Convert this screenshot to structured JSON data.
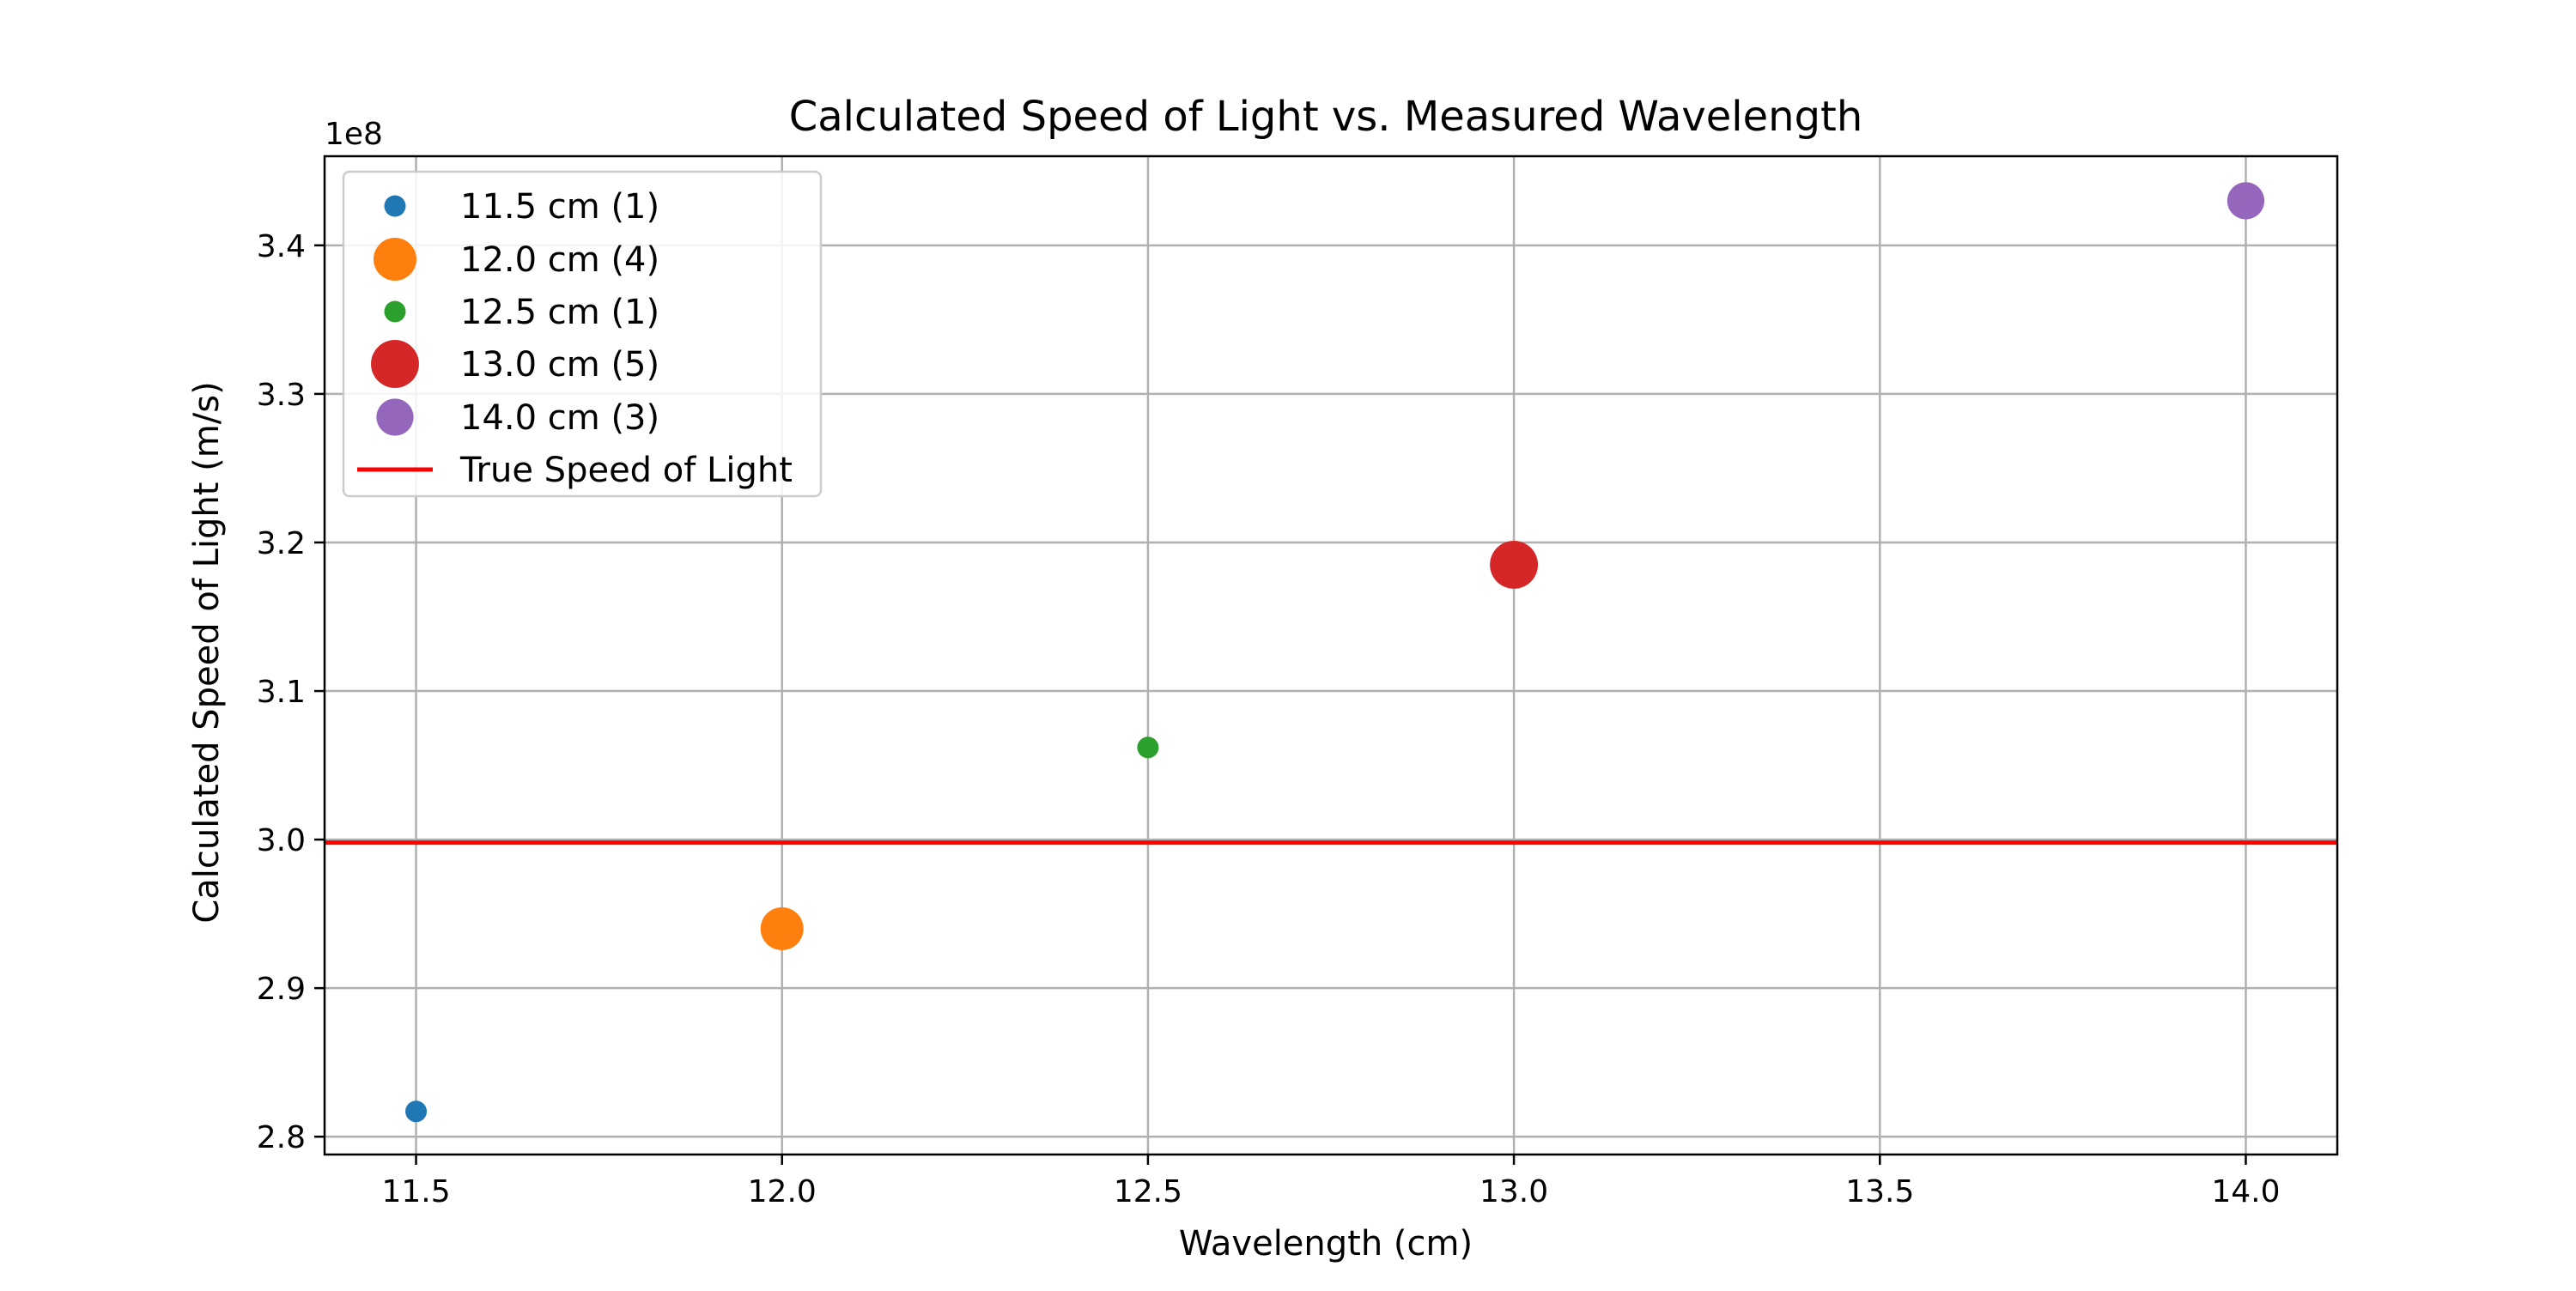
{
  "chart_data": {
    "type": "scatter",
    "title": "Calculated Speed of Light vs. Measured Wavelength",
    "xlabel": "Wavelength (cm)",
    "ylabel": "Calculated Speed of Light (m/s)",
    "y_offset_label": "1e8",
    "xlim": [
      11.375,
      14.125
    ],
    "ylim": [
      2.788,
      3.46
    ],
    "x_ticks": [
      11.5,
      12.0,
      12.5,
      13.0,
      13.5,
      14.0
    ],
    "x_tick_labels": [
      "11.5",
      "12.0",
      "12.5",
      "13.0",
      "13.5",
      "14.0"
    ],
    "y_ticks": [
      2.8,
      2.9,
      3.0,
      3.1,
      3.2,
      3.3,
      3.4
    ],
    "y_tick_labels": [
      "2.8",
      "2.9",
      "3.0",
      "3.1",
      "3.2",
      "3.3",
      "3.4"
    ],
    "grid": true,
    "legend_placement": "upper-left",
    "series": [
      {
        "name": "11.5 cm (1)",
        "x": 11.5,
        "y": 2.817,
        "count": 1,
        "color": "#1f77b4"
      },
      {
        "name": "12.0 cm (4)",
        "x": 12.0,
        "y": 2.94,
        "count": 4,
        "color": "#ff7f0e"
      },
      {
        "name": "12.5 cm (1)",
        "x": 12.5,
        "y": 3.062,
        "count": 1,
        "color": "#2ca02c"
      },
      {
        "name": "13.0 cm (5)",
        "x": 13.0,
        "y": 3.185,
        "count": 5,
        "color": "#d62728"
      },
      {
        "name": "14.0 cm (3)",
        "x": 14.0,
        "y": 3.43,
        "count": 3,
        "color": "#9467bd"
      }
    ],
    "reference_line": {
      "name": "True Speed of Light",
      "y": 2.998,
      "color": "#ff0000"
    }
  }
}
